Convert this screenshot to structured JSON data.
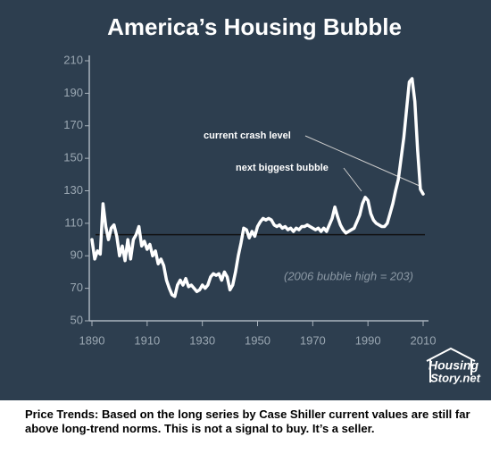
{
  "chart_data": {
    "type": "line",
    "title": "America’s Housing Bubble",
    "x": [
      1890,
      1891,
      1892,
      1893,
      1894,
      1895,
      1896,
      1897,
      1898,
      1899,
      1900,
      1901,
      1902,
      1903,
      1904,
      1905,
      1906,
      1907,
      1908,
      1909,
      1910,
      1911,
      1912,
      1913,
      1914,
      1915,
      1916,
      1917,
      1918,
      1919,
      1920,
      1921,
      1922,
      1923,
      1924,
      1925,
      1926,
      1927,
      1928,
      1929,
      1930,
      1931,
      1932,
      1933,
      1934,
      1935,
      1936,
      1937,
      1938,
      1939,
      1940,
      1941,
      1942,
      1943,
      1944,
      1945,
      1946,
      1947,
      1948,
      1949,
      1950,
      1951,
      1952,
      1953,
      1954,
      1955,
      1956,
      1957,
      1958,
      1959,
      1960,
      1961,
      1962,
      1963,
      1964,
      1965,
      1966,
      1967,
      1968,
      1969,
      1970,
      1971,
      1972,
      1973,
      1974,
      1975,
      1976,
      1977,
      1978,
      1979,
      1980,
      1981,
      1982,
      1983,
      1984,
      1985,
      1986,
      1987,
      1988,
      1989,
      1990,
      1991,
      1992,
      1993,
      1994,
      1995,
      1996,
      1997,
      1998,
      1999,
      2000,
      2001,
      2002,
      2003,
      2004,
      2005,
      2006,
      2007,
      2008,
      2009,
      2010
    ],
    "series": [
      {
        "color": "#ffffff",
        "values": [
          100,
          88,
          93,
          91,
          122,
          108,
          100,
          107,
          109,
          102,
          90,
          96,
          87,
          100,
          88,
          100,
          103,
          108,
          96,
          99,
          94,
          97,
          90,
          93,
          85,
          88,
          84,
          75,
          70,
          66,
          65,
          72,
          75,
          72,
          76,
          71,
          72,
          70,
          68,
          69,
          72,
          70,
          72,
          77,
          79,
          78,
          79,
          75,
          80,
          77,
          69,
          72,
          80,
          90,
          98,
          107,
          106,
          101,
          105,
          102,
          108,
          111,
          113,
          112,
          113,
          112,
          109,
          108,
          109,
          107,
          108,
          106,
          107,
          105,
          107,
          106,
          108,
          108,
          109,
          108,
          107,
          106,
          107,
          105,
          107,
          105,
          109,
          113,
          120,
          114,
          109,
          106,
          104,
          105,
          106,
          107,
          111,
          115,
          122,
          126,
          124,
          116,
          112,
          110,
          109,
          108,
          108,
          110,
          116,
          122,
          130,
          137,
          150,
          163,
          180,
          197,
          199,
          185,
          155,
          131,
          128
        ]
      }
    ],
    "reference_line": 103,
    "xlim": [
      1890,
      2010
    ],
    "ylim": [
      50,
      210
    ],
    "xticks": [
      1890,
      1910,
      1930,
      1950,
      1970,
      1990,
      2010
    ],
    "yticks": [
      50,
      70,
      90,
      110,
      130,
      150,
      170,
      190,
      210
    ],
    "annotations": [
      "current crash level",
      "next biggest bubble",
      "(2006 bubble high = 203)"
    ]
  },
  "logo": [
    "Housing",
    "Story.net"
  ],
  "caption": "Price Trends: Based on the long series by Case Shiller current values are still far above long-trend norms. This is not a signal to buy. It’s a seller."
}
